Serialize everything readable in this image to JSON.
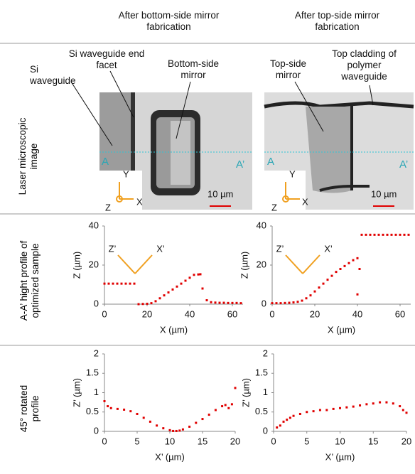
{
  "headers": [
    "After bottom-side mirror fabrication",
    "After top-side mirror fabrication"
  ],
  "row_labels": [
    "Laser microscopic image",
    "A-A’ hight profile of optimized sample",
    "45° rotated profile"
  ],
  "panels": [
    {
      "labels": [
        "Si waveguide",
        "Si waveguide end facet",
        "Bottom-side mirror"
      ],
      "marker_a": "A",
      "marker_a2": "A’",
      "axis_y": "Y",
      "axis_x": "X",
      "axis_z": "Z",
      "scale": "10 µm"
    },
    {
      "labels": [
        "Top-side mirror",
        "Top cladding of polymer waveguide"
      ],
      "marker_a": "A",
      "marker_a2": "A’",
      "axis_y": "Y",
      "axis_x": "X",
      "axis_z": "Z",
      "scale": "10 µm"
    }
  ],
  "chart_data": [
    {
      "type": "scatter",
      "x_label": "X (µm)",
      "y_label": "Z (µm)",
      "annotations": [
        "Z’",
        "X’"
      ],
      "x": [
        0,
        2,
        4,
        6,
        8,
        10,
        12,
        14,
        16,
        18,
        20,
        22,
        24,
        26,
        28,
        30,
        32,
        34,
        36,
        38,
        40,
        42,
        44,
        45,
        46,
        48,
        50,
        52,
        54,
        56,
        58,
        60,
        62,
        64
      ],
      "series": [
        {
          "color": "#e00000",
          "values": [
            10.5,
            10.5,
            10.5,
            10.5,
            10.5,
            10.5,
            10.5,
            10.5,
            0,
            0.1,
            0.2,
            0.5,
            1.5,
            3,
            4.5,
            6,
            7.5,
            9,
            10.5,
            12,
            13.5,
            15,
            15.2,
            15.3,
            8,
            2,
            1,
            0.8,
            0.7,
            0.7,
            0.6,
            0.6,
            0.6,
            0.5
          ]
        }
      ],
      "xlim": [
        0,
        65
      ],
      "ylim": [
        0,
        40
      ],
      "xticks": [
        0,
        20,
        40,
        60
      ],
      "yticks": [
        0,
        20,
        40
      ]
    },
    {
      "type": "scatter",
      "x_label": "X (µm)",
      "y_label": "Z (µm)",
      "annotations": [
        "Z’",
        "X’"
      ],
      "x": [
        0,
        2,
        4,
        6,
        8,
        10,
        12,
        14,
        16,
        18,
        20,
        22,
        24,
        26,
        28,
        30,
        32,
        34,
        36,
        38,
        40,
        40,
        41,
        42,
        44,
        46,
        48,
        50,
        52,
        54,
        56,
        58,
        60,
        62,
        64
      ],
      "series": [
        {
          "color": "#e00000",
          "values": [
            0.5,
            0.5,
            0.5,
            0.6,
            0.7,
            0.9,
            1.2,
            1.8,
            3,
            4.5,
            6.5,
            8.5,
            10.5,
            12.5,
            14.5,
            16.5,
            18,
            19.5,
            21,
            22.5,
            23.5,
            5,
            18,
            35.5,
            35.5,
            35.5,
            35.5,
            35.5,
            35.5,
            35.5,
            35.5,
            35.5,
            35.5,
            35.5,
            35.5
          ]
        }
      ],
      "xlim": [
        0,
        65
      ],
      "ylim": [
        0,
        40
      ],
      "xticks": [
        0,
        20,
        40,
        60
      ],
      "yticks": [
        0,
        20,
        40
      ]
    },
    {
      "type": "scatter",
      "x_label": "X’ (µm)",
      "y_label": "Z’ (µm)",
      "x": [
        0,
        0.5,
        1,
        2,
        3,
        4,
        5,
        6,
        7,
        8,
        9,
        10,
        10.5,
        11,
        11.5,
        12,
        13,
        14,
        15,
        16,
        17,
        18,
        18.5,
        19,
        19.5,
        20
      ],
      "series": [
        {
          "color": "#e00000",
          "values": [
            0.78,
            0.65,
            0.6,
            0.58,
            0.56,
            0.52,
            0.45,
            0.35,
            0.25,
            0.15,
            0.08,
            0.03,
            0.01,
            0.01,
            0.02,
            0.05,
            0.12,
            0.22,
            0.32,
            0.43,
            0.55,
            0.65,
            0.68,
            0.6,
            0.7,
            1.12
          ]
        }
      ],
      "xlim": [
        0,
        20
      ],
      "ylim": [
        0,
        2
      ],
      "xticks": [
        0,
        5,
        10,
        15,
        20
      ],
      "yticks": [
        0,
        0.5,
        1,
        1.5,
        2
      ]
    },
    {
      "type": "scatter",
      "x_label": "X’ (µm)",
      "y_label": "Z’ (µm)",
      "x": [
        0.5,
        1,
        1.5,
        2,
        2.5,
        3,
        4,
        5,
        6,
        7,
        8,
        9,
        10,
        11,
        12,
        13,
        14,
        15,
        16,
        17,
        18,
        19,
        19.5,
        20
      ],
      "series": [
        {
          "color": "#e00000",
          "values": [
            0.1,
            0.15,
            0.25,
            0.3,
            0.35,
            0.4,
            0.45,
            0.5,
            0.52,
            0.55,
            0.55,
            0.58,
            0.6,
            0.62,
            0.64,
            0.67,
            0.7,
            0.72,
            0.75,
            0.75,
            0.72,
            0.65,
            0.55,
            0.48
          ]
        }
      ],
      "xlim": [
        0,
        20
      ],
      "ylim": [
        0,
        2
      ],
      "xticks": [
        0,
        5,
        10,
        15,
        20
      ],
      "yticks": [
        0,
        0.5,
        1,
        1.5,
        2
      ]
    }
  ]
}
